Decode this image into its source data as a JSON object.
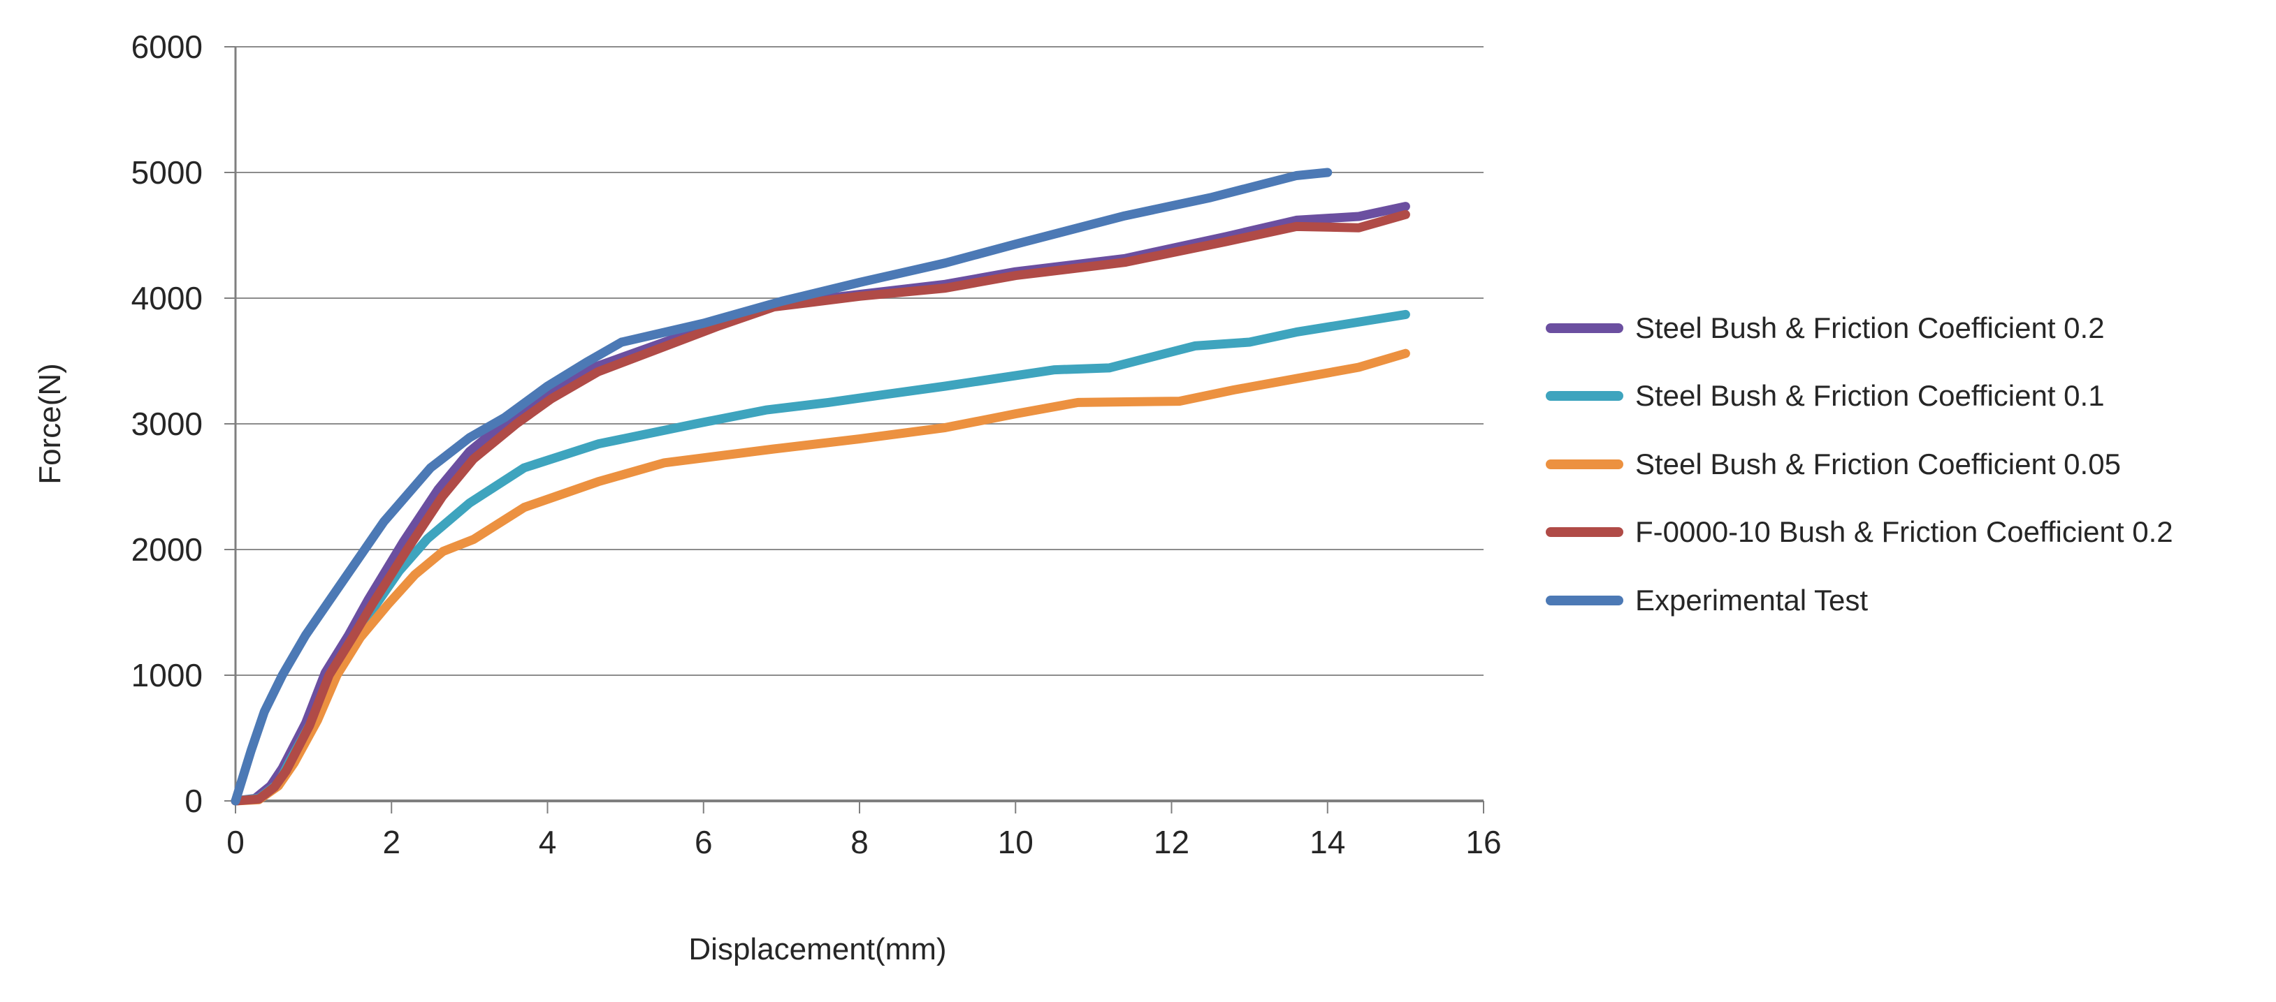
{
  "figure_background": "#FFFFFF",
  "style": {
    "grid_color": "#8C8C8C",
    "axis_color": "#7F7F7F",
    "text_color": "#262626",
    "line_width": 13,
    "tick_font_size": 46,
    "axis_title_font_size": 44,
    "legend_font_size": 42
  },
  "chart_data": {
    "type": "line",
    "title": "",
    "xlabel": "Displacement(mm)",
    "ylabel": "Force(N)",
    "xlim": [
      0,
      16
    ],
    "ylim": [
      0,
      6000
    ],
    "x_ticks": [
      0,
      2,
      4,
      6,
      8,
      10,
      12,
      14,
      16
    ],
    "y_ticks": [
      0,
      1000,
      2000,
      3000,
      4000,
      5000,
      6000
    ],
    "grid": "horizontal",
    "legend_position": "right",
    "series": [
      {
        "name": "Steel Bush & Friction Coefficient 0.2",
        "color": "#6B4FA0",
        "points": [
          [
            0,
            0
          ],
          [
            0.25,
            20
          ],
          [
            0.45,
            120
          ],
          [
            0.6,
            260
          ],
          [
            0.9,
            620
          ],
          [
            1.15,
            1020
          ],
          [
            1.45,
            1320
          ],
          [
            1.7,
            1600
          ],
          [
            2.15,
            2060
          ],
          [
            2.6,
            2480
          ],
          [
            3.0,
            2780
          ],
          [
            3.55,
            3060
          ],
          [
            4.0,
            3250
          ],
          [
            4.6,
            3450
          ],
          [
            5.5,
            3650
          ],
          [
            6.2,
            3800
          ],
          [
            6.9,
            3950
          ],
          [
            8.0,
            4030
          ],
          [
            9.1,
            4110
          ],
          [
            10.0,
            4210
          ],
          [
            11.4,
            4315
          ],
          [
            12.7,
            4490
          ],
          [
            13.6,
            4620
          ],
          [
            14.4,
            4650
          ],
          [
            15.0,
            4730
          ]
        ]
      },
      {
        "name": "Steel Bush & Friction Coefficient 0.1",
        "color": "#3EA4BE",
        "points": [
          [
            0,
            0
          ],
          [
            0.3,
            20
          ],
          [
            0.55,
            140
          ],
          [
            0.7,
            320
          ],
          [
            1.0,
            660
          ],
          [
            1.25,
            1000
          ],
          [
            1.55,
            1300
          ],
          [
            1.8,
            1560
          ],
          [
            2.1,
            1830
          ],
          [
            2.46,
            2085
          ],
          [
            3.0,
            2370
          ],
          [
            3.7,
            2650
          ],
          [
            4.65,
            2840
          ],
          [
            5.9,
            3000
          ],
          [
            6.8,
            3110
          ],
          [
            7.6,
            3170
          ],
          [
            8.4,
            3240
          ],
          [
            9.1,
            3300
          ],
          [
            10.5,
            3430
          ],
          [
            11.2,
            3445
          ],
          [
            12.3,
            3620
          ],
          [
            13.0,
            3650
          ],
          [
            13.6,
            3730
          ],
          [
            14.3,
            3800
          ],
          [
            15.0,
            3870
          ]
        ]
      },
      {
        "name": "Steel Bush & Friction Coefficient 0.05",
        "color": "#EC9140",
        "points": [
          [
            0,
            0
          ],
          [
            0.3,
            10
          ],
          [
            0.55,
            120
          ],
          [
            0.75,
            300
          ],
          [
            1.05,
            640
          ],
          [
            1.3,
            1000
          ],
          [
            1.6,
            1300
          ],
          [
            1.95,
            1560
          ],
          [
            2.3,
            1800
          ],
          [
            2.66,
            1985
          ],
          [
            3.05,
            2080
          ],
          [
            3.7,
            2335
          ],
          [
            4.65,
            2540
          ],
          [
            5.5,
            2690
          ],
          [
            6.9,
            2800
          ],
          [
            8.0,
            2880
          ],
          [
            9.1,
            2970
          ],
          [
            10.0,
            3080
          ],
          [
            10.8,
            3170
          ],
          [
            12.1,
            3180
          ],
          [
            12.8,
            3270
          ],
          [
            13.6,
            3360
          ],
          [
            14.4,
            3450
          ],
          [
            15.0,
            3560
          ]
        ]
      },
      {
        "name": "F-0000-10 Bush & Friction Coefficient 0.2",
        "color": "#B04B47",
        "points": [
          [
            0,
            0
          ],
          [
            0.3,
            15
          ],
          [
            0.5,
            110
          ],
          [
            0.65,
            240
          ],
          [
            0.95,
            600
          ],
          [
            1.2,
            1000
          ],
          [
            1.5,
            1300
          ],
          [
            1.75,
            1560
          ],
          [
            2.2,
            2000
          ],
          [
            2.65,
            2420
          ],
          [
            3.05,
            2720
          ],
          [
            3.6,
            3000
          ],
          [
            4.05,
            3200
          ],
          [
            4.65,
            3415
          ],
          [
            5.5,
            3615
          ],
          [
            6.2,
            3780
          ],
          [
            6.9,
            3930
          ],
          [
            8.0,
            4015
          ],
          [
            9.1,
            4080
          ],
          [
            10.0,
            4180
          ],
          [
            11.4,
            4285
          ],
          [
            12.7,
            4450
          ],
          [
            13.6,
            4570
          ],
          [
            14.4,
            4560
          ],
          [
            15.0,
            4665
          ]
        ]
      },
      {
        "name": "Experimental Test",
        "color": "#4C79B5",
        "points": [
          [
            0,
            0
          ],
          [
            0.2,
            400
          ],
          [
            0.37,
            710
          ],
          [
            0.6,
            1000
          ],
          [
            0.9,
            1320
          ],
          [
            1.3,
            1680
          ],
          [
            1.9,
            2220
          ],
          [
            2.5,
            2650
          ],
          [
            3.0,
            2890
          ],
          [
            3.45,
            3050
          ],
          [
            4.0,
            3300
          ],
          [
            4.5,
            3490
          ],
          [
            4.95,
            3650
          ],
          [
            6.0,
            3800
          ],
          [
            7.0,
            3975
          ],
          [
            8.0,
            4125
          ],
          [
            9.1,
            4280
          ],
          [
            10.0,
            4430
          ],
          [
            11.4,
            4655
          ],
          [
            12.5,
            4800
          ],
          [
            13.6,
            4975
          ],
          [
            14.0,
            5000
          ]
        ]
      }
    ]
  }
}
